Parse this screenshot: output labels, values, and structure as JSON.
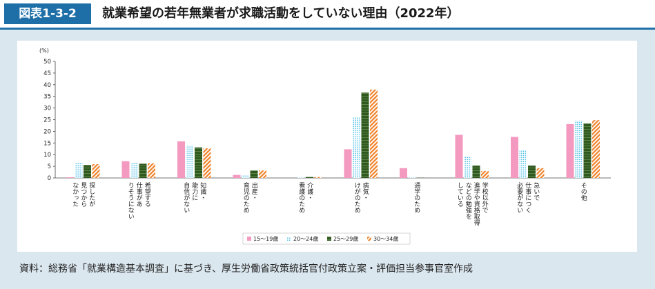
{
  "header": {
    "figure_number": "図表1-3-2",
    "title": "就業希望の若年無業者が求職活動をしていない理由（2022年）"
  },
  "source_note": "資料：総務省「就業構造基本調査」に基づき、厚生労働省政策統括官付政策立案・評価担当参事官室作成",
  "chart_data": {
    "type": "bar",
    "y_unit": "(%)",
    "ylim": [
      0,
      50
    ],
    "yticks": [
      0,
      5,
      10,
      15,
      20,
      25,
      30,
      35,
      40,
      45,
      50
    ],
    "grid": false,
    "legend_position": "bottom",
    "categories": [
      [
        "探したが",
        "見つから",
        "なかった"
      ],
      [
        "希望する",
        "仕事があ",
        "りそうにない"
      ],
      [
        "知識・",
        "能力に",
        "自信がない"
      ],
      [
        "出産・",
        "育児のため"
      ],
      [
        "介護・",
        "看護のため"
      ],
      [
        "病気・",
        "けがのため"
      ],
      [
        "通学のため"
      ],
      [
        "学校以外で",
        "進学や資格取得",
        "などの勉強を",
        "している"
      ],
      [
        "急いで",
        "仕事につく",
        "必要がない"
      ],
      [
        "その他"
      ]
    ],
    "series": [
      {
        "name": "15～19歳",
        "color": "#f49ac1",
        "pattern": "solid",
        "values": [
          0.3,
          7.2,
          15.7,
          1.3,
          0.0,
          12.3,
          4.2,
          18.5,
          17.6,
          23.1
        ]
      },
      {
        "name": "20～24歳",
        "color": "#5bc4ea",
        "pattern": "dots",
        "values": [
          6.6,
          6.6,
          14.0,
          1.1,
          0.2,
          26.0,
          0.2,
          9.0,
          11.9,
          24.6
        ]
      },
      {
        "name": "25～29歳",
        "color": "#2e5a1e",
        "pattern": "stripes",
        "values": [
          5.6,
          6.1,
          13.1,
          3.2,
          0.4,
          36.6,
          0.1,
          5.3,
          5.3,
          23.4
        ]
      },
      {
        "name": "30～34歳",
        "color": "#f0822a",
        "pattern": "diag",
        "values": [
          5.9,
          6.3,
          12.7,
          3.2,
          0.4,
          37.9,
          0.0,
          3.0,
          4.2,
          24.8
        ]
      }
    ]
  }
}
